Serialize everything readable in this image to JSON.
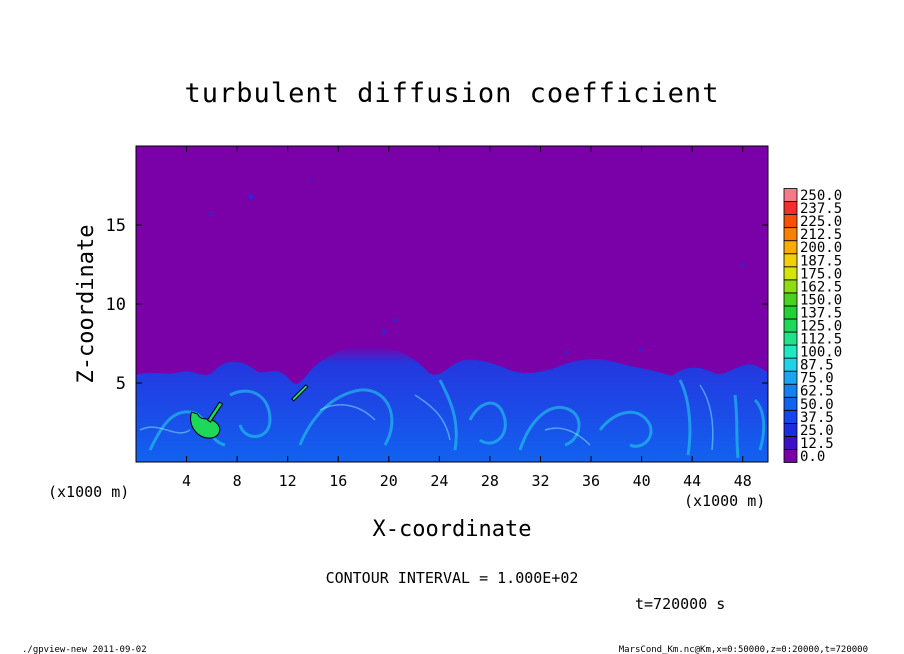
{
  "chart_data": {
    "type": "heatmap",
    "title": "turbulent diffusion coefficient",
    "xlabel": "X-coordinate",
    "ylabel": "Z-coordinate",
    "x_unit_left": "(x1000 m)",
    "x_unit_right": "(x1000 m)",
    "xlim": [
      0,
      50
    ],
    "ylim": [
      0,
      20
    ],
    "x_ticks": [
      4,
      8,
      12,
      16,
      20,
      24,
      28,
      32,
      36,
      40,
      44,
      48
    ],
    "x_tick_labels": [
      "4",
      "8",
      "12",
      "16",
      "20",
      "24",
      "28",
      "32",
      "36",
      "40",
      "44",
      "48"
    ],
    "y_ticks": [
      5,
      10,
      15
    ],
    "y_tick_labels": [
      "5",
      "10",
      "15"
    ],
    "colorbar": {
      "levels": [
        0.0,
        12.5,
        25.0,
        37.5,
        50.0,
        62.5,
        75.0,
        87.5,
        100.0,
        112.5,
        125.0,
        137.5,
        150.0,
        162.5,
        175.0,
        187.5,
        200.0,
        212.5,
        225.0,
        237.5,
        250.0
      ],
      "labels": [
        "0.0",
        "12.5",
        "25.0",
        "37.5",
        "50.0",
        "62.5",
        "75.0",
        "87.5",
        "100.0",
        "112.5",
        "125.0",
        "137.5",
        "150.0",
        "162.5",
        "175.0",
        "187.5",
        "200.0",
        "212.5",
        "225.0",
        "237.5",
        "250.0"
      ],
      "colors": [
        "#7a00a8",
        "#3d10c8",
        "#1c2ce0",
        "#1446ec",
        "#1262f0",
        "#1480f2",
        "#19a6ee",
        "#1ed2e8",
        "#22e8c0",
        "#20e28a",
        "#1ed85a",
        "#24d038",
        "#4ad220",
        "#8edc12",
        "#d6e40e",
        "#f2d008",
        "#f8ac06",
        "#fa8004",
        "#fa5004",
        "#f42e2e",
        "#f47a8a"
      ]
    },
    "background_level": 0.0,
    "turbulent_layer_top_km": 5.5,
    "high_value_patches": [
      {
        "x": 5.5,
        "z": 2.4,
        "value": 125.0
      },
      {
        "x": 12.8,
        "z": 4.5,
        "value": 112.5
      }
    ]
  },
  "annotations": {
    "contour_interval": "CONTOUR INTERVAL = 1.000E+02",
    "time": "t=720000 s"
  },
  "footer": {
    "left": "./gpview-new  2011-09-02",
    "right": "MarsCond_Km.nc@Km,x=0:50000,z=0:20000,t=720000"
  }
}
